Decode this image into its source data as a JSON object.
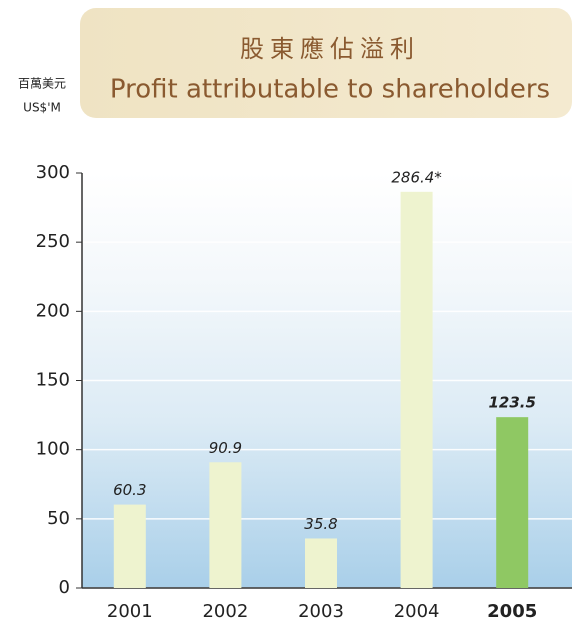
{
  "chart_data": {
    "type": "bar",
    "title": "股東應佔溢利",
    "subtitle": "Profit attributable to shareholders",
    "ylabel": "百萬美元",
    "ylabel_unit": "US$'M",
    "categories": [
      "2001",
      "2002",
      "2003",
      "2004",
      "2005"
    ],
    "values": [
      60.3,
      90.9,
      35.8,
      286.4,
      123.5
    ],
    "value_labels": [
      "60.3",
      "90.9",
      "35.8",
      "286.4*",
      "123.5"
    ],
    "colors": [
      "#eef3cf",
      "#eef3cf",
      "#eef3cf",
      "#eef3cf",
      "#8fc863"
    ],
    "highlight": 4,
    "ylim": [
      0,
      300
    ],
    "yticks": [
      0,
      50,
      100,
      150,
      200,
      250,
      300
    ],
    "grid": true
  }
}
